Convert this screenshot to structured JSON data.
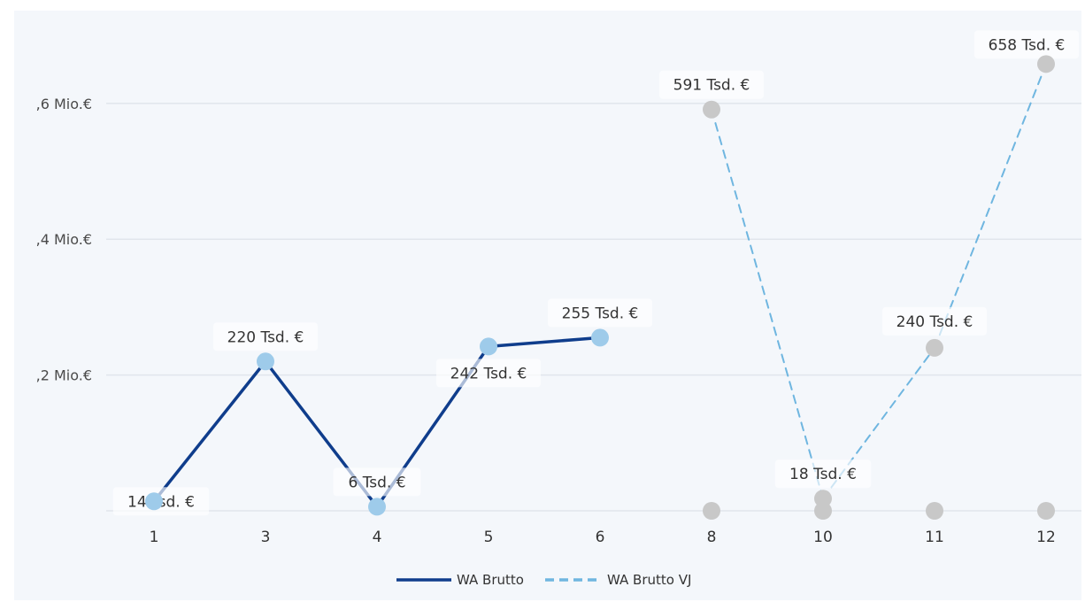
{
  "chart_data": {
    "type": "line",
    "categories": [
      "1",
      "3",
      "4",
      "5",
      "6",
      "8",
      "10",
      "11",
      "12"
    ],
    "ytick_labels": [
      ",2 Mio.€",
      ",4 Mio.€",
      ",6 Mio.€"
    ],
    "ytick_values": [
      0.2,
      0.4,
      0.6
    ],
    "ylim": [
      0,
      0.7
    ],
    "grid": true,
    "legend_position": "bottom-center",
    "series": [
      {
        "name": "WA Brutto",
        "style": "solid",
        "line_color": "#0f3d8c",
        "marker_color": "#9ecbea",
        "values": [
          0.014,
          0.22,
          0.006,
          0.242,
          0.255,
          null,
          null,
          null,
          null
        ],
        "labels": [
          "14 Tsd. €",
          "220 Tsd. €",
          "6 Tsd. €",
          "242 Tsd. €",
          "255 Tsd. €",
          null,
          null,
          null,
          null
        ]
      },
      {
        "name": "WA Brutto VJ",
        "style": "dashed",
        "line_color": "#6fb6e0",
        "marker_color": "#c8c8c8",
        "values": [
          null,
          null,
          null,
          null,
          null,
          0.591,
          0.018,
          0.24,
          0.658
        ],
        "labels": [
          null,
          null,
          null,
          null,
          null,
          "591 Tsd. €",
          "18 Tsd. €",
          "240 Tsd. €",
          "658 Tsd. €"
        ]
      }
    ],
    "zero_markers": {
      "color": "#c8c8c8",
      "categories": [
        "8",
        "10",
        "11",
        "12"
      ]
    }
  }
}
